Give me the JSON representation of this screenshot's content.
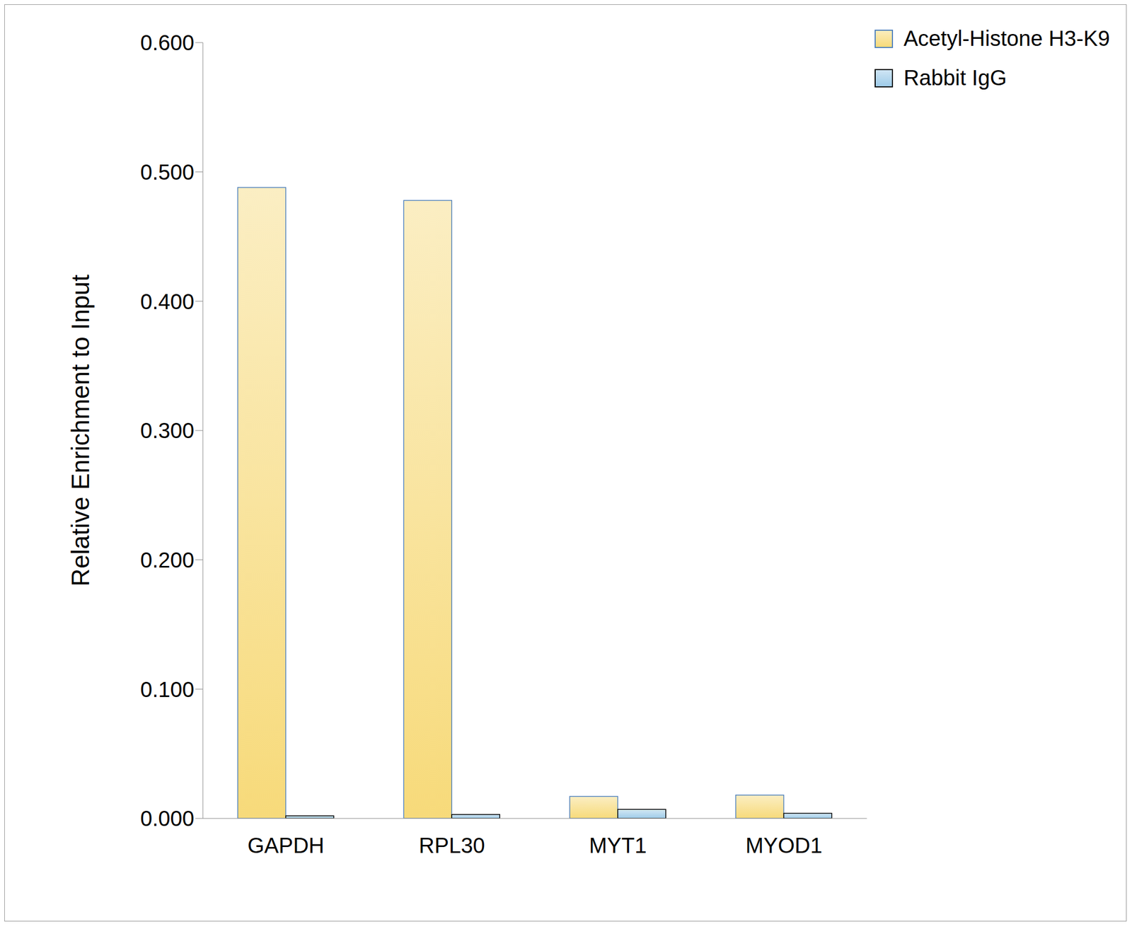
{
  "chart_data": {
    "type": "bar",
    "y_label": "Relative Enrichment to Input",
    "categories": [
      "GAPDH",
      "RPL30",
      "MYT1",
      "MYOD1"
    ],
    "series": [
      {
        "name": "Acetyl-Histone H3-K9",
        "color": "#f7da7a",
        "values": [
          0.488,
          0.478,
          0.017,
          0.018
        ]
      },
      {
        "name": "Rabbit IgG",
        "color": "#9ecbe8",
        "values": [
          0.002,
          0.003,
          0.007,
          0.004
        ]
      }
    ],
    "ylim": [
      0,
      0.6
    ],
    "yticks": [
      {
        "value": 0,
        "label": "0.000"
      },
      {
        "value": 0.1,
        "label": "0.100"
      },
      {
        "value": 0.2,
        "label": "0.200"
      },
      {
        "value": 0.3,
        "label": "0.300"
      },
      {
        "value": 0.4,
        "label": "0.400"
      },
      {
        "value": 0.5,
        "label": "0.500"
      },
      {
        "value": 0.6,
        "label": "0.600"
      }
    ],
    "grid": false,
    "legend": "top-right"
  }
}
